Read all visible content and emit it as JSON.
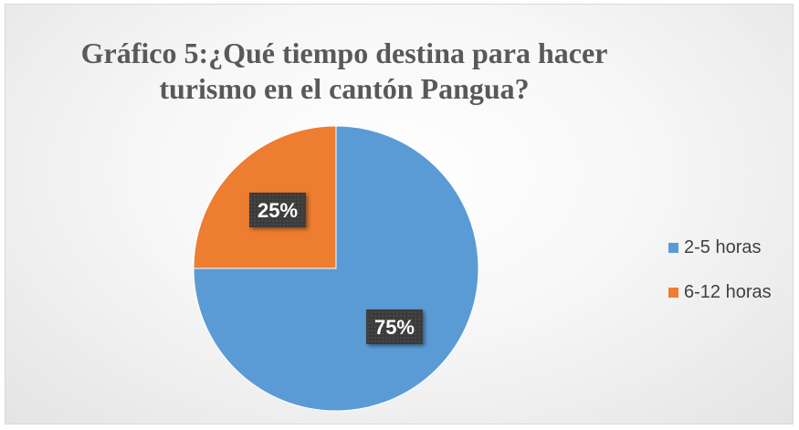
{
  "chart_data": {
    "type": "pie",
    "title": "Gráfico 5:¿Qué tiempo destina para hacer turismo en el cantón Pangua?",
    "title_lines": [
      "Gráfico 5:¿Qué tiempo destina para hacer",
      "turismo en el cantón Pangua?"
    ],
    "categories": [
      "2-5 horas",
      "6-12 horas"
    ],
    "values": [
      75,
      25
    ],
    "data_labels": [
      "75%",
      "25%"
    ],
    "colors": [
      "#5b9bd5",
      "#ed7d31"
    ],
    "legend_position": "right"
  }
}
